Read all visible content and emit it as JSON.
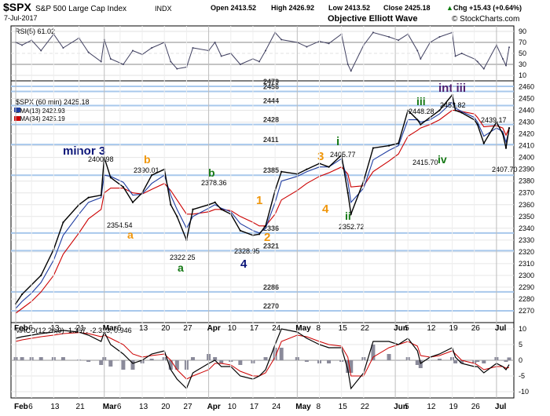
{
  "header": {
    "symbol": "$SPX",
    "name": "S&P 500 Large Cap Index",
    "exchange": "INDX",
    "date": "7-Jul-2017",
    "open": "Open 2413.52",
    "high": "High 2426.92",
    "low": "Low 2413.52",
    "close": "Close 2425.18",
    "chg": "Chg +15.43 (+0.64%)",
    "chg_arrow": "▲",
    "source": "Objective Elliott Wave",
    "copyright": "© StockCharts.com"
  },
  "colors": {
    "price": "#000000",
    "ema13": "#1e3ca0",
    "ema34": "#cc0000",
    "level_line": "#a8c8ec",
    "orange": "#f0960a",
    "green": "#147814",
    "navy": "#0a1478",
    "purple": "#502070",
    "rsi_area": "#404060"
  },
  "rsi_panel": {
    "label": "RSI(5) 61.02",
    "ticks": [
      "90",
      "70",
      "50",
      "30",
      "10"
    ]
  },
  "price_panel": {
    "series_label": "$SPX (60 min) 2425.18",
    "ema13_label": "EMA(13) 2422.93",
    "ema34_label": "EMA(34) 2425.19",
    "ticks": [
      "2460",
      "2450",
      "2440",
      "2430",
      "2420",
      "2410",
      "2400",
      "2390",
      "2380",
      "2370",
      "2360",
      "2350",
      "2340",
      "2330",
      "2320",
      "2310",
      "2300",
      "2290",
      "2280",
      "2270"
    ],
    "levels": [
      "2479",
      "2456",
      "2444",
      "2428",
      "2411",
      "2385",
      "2336",
      "2321",
      "2286",
      "2270"
    ],
    "price_labels": [
      "2400.98",
      "2390.01",
      "2378.36",
      "2354.54",
      "2322.25",
      "2328.95",
      "2405.77",
      "2352.72",
      "2448.28",
      "2453.82",
      "2439.17",
      "2415.70",
      "2407.70"
    ],
    "waves": {
      "minor3": "minor 3",
      "b_orange": "b",
      "a_orange": "a",
      "a_green": "a",
      "b_green": "b",
      "w4_navy": "4",
      "w1_orange": "1",
      "w2_orange": "2",
      "w3_orange": "3",
      "w4_orange": "4",
      "i_green": "i",
      "ii_green": "ii",
      "iii_green": "iii",
      "iv_green": "iv",
      "int_iii": "int iii"
    }
  },
  "macd_panel": {
    "label": "MACD(12,26,9) -1.367, -2.313, 0.946",
    "ticks": [
      "10",
      "5",
      "0",
      "-5",
      "-10"
    ]
  },
  "x_axis": {
    "labels": [
      "Feb",
      "6",
      "13",
      "21",
      "Mar",
      "6",
      "13",
      "20",
      "27",
      "Apr",
      "10",
      "17",
      "24",
      "May",
      "8",
      "15",
      "22",
      "Jun",
      "5",
      "12",
      "19",
      "26",
      "Jul"
    ]
  },
  "chart_data": {
    "type": "line",
    "title": "$SPX S&P 500 Large Cap Index INDX",
    "price_range": [
      2260,
      2465
    ],
    "rsi_range": [
      0,
      100
    ],
    "macd_range": [
      -12,
      12
    ],
    "x": [
      "Feb 1",
      "Feb 3",
      "Feb 6",
      "Feb 9",
      "Feb 13",
      "Feb 16",
      "Feb 21",
      "Feb 24",
      "Feb 28",
      "Mar 1",
      "Mar 3",
      "Mar 7",
      "Mar 10",
      "Mar 13",
      "Mar 16",
      "Mar 20",
      "Mar 22",
      "Mar 24",
      "Mar 27",
      "Mar 29",
      "Apr 3",
      "Apr 5",
      "Apr 7",
      "Apr 10",
      "Apr 13",
      "Apr 17",
      "Apr 19",
      "Apr 21",
      "Apr 24",
      "Apr 26",
      "May 1",
      "May 4",
      "May 8",
      "May 11",
      "May 15",
      "May 17",
      "May 18",
      "May 22",
      "May 25",
      "May 30",
      "Jun 2",
      "Jun 5",
      "Jun 8",
      "Jun 9",
      "Jun 12",
      "Jun 15",
      "Jun 19",
      "Jun 20",
      "Jun 22",
      "Jun 26",
      "Jun 27",
      "Jun 29",
      "Jul 3",
      "Jul 5",
      "Jul 6",
      "Jul 7"
    ],
    "series": [
      {
        "name": "$SPX (60 min)",
        "values": [
          2276,
          2284,
          2292,
          2300,
          2322,
          2345,
          2360,
          2366,
          2368,
          2400,
          2383,
          2375,
          2362,
          2370,
          2385,
          2390,
          2360,
          2350,
          2330,
          2356,
          2360,
          2362,
          2356,
          2352,
          2338,
          2334,
          2335,
          2342,
          2372,
          2388,
          2386,
          2390,
          2395,
          2392,
          2402,
          2370,
          2352,
          2380,
          2408,
          2410,
          2412,
          2440,
          2432,
          2428,
          2434,
          2440,
          2453,
          2440,
          2438,
          2432,
          2428,
          2412,
          2430,
          2420,
          2408,
          2425
        ]
      },
      {
        "name": "EMA(13)",
        "values": [
          2272,
          2278,
          2285,
          2294,
          2313,
          2334,
          2352,
          2362,
          2366,
          2385,
          2384,
          2379,
          2368,
          2369,
          2378,
          2385,
          2368,
          2356,
          2340,
          2350,
          2357,
          2360,
          2357,
          2354,
          2344,
          2338,
          2336,
          2340,
          2362,
          2380,
          2384,
          2388,
          2392,
          2392,
          2399,
          2380,
          2362,
          2374,
          2398,
          2406,
          2410,
          2432,
          2432,
          2430,
          2432,
          2437,
          2447,
          2442,
          2439,
          2434,
          2430,
          2418,
          2425,
          2422,
          2413,
          2423
        ]
      },
      {
        "name": "EMA(34)",
        "values": [
          2268,
          2272,
          2278,
          2286,
          2300,
          2318,
          2336,
          2348,
          2356,
          2370,
          2374,
          2374,
          2370,
          2369,
          2373,
          2378,
          2372,
          2364,
          2352,
          2352,
          2354,
          2356,
          2356,
          2355,
          2350,
          2345,
          2342,
          2342,
          2352,
          2364,
          2372,
          2378,
          2384,
          2387,
          2392,
          2386,
          2375,
          2376,
          2388,
          2397,
          2403,
          2418,
          2423,
          2425,
          2428,
          2432,
          2440,
          2440,
          2439,
          2437,
          2434,
          2426,
          2427,
          2425,
          2419,
          2425
        ]
      }
    ],
    "rsi": [
      70,
      65,
      74,
      55,
      85,
      60,
      78,
      52,
      35,
      75,
      40,
      30,
      55,
      48,
      60,
      70,
      35,
      22,
      25,
      60,
      55,
      70,
      45,
      50,
      30,
      40,
      35,
      55,
      88,
      75,
      70,
      62,
      72,
      68,
      85,
      30,
      18,
      65,
      88,
      80,
      74,
      85,
      55,
      40,
      70,
      80,
      88,
      45,
      50,
      40,
      35,
      22,
      65,
      40,
      28,
      61
    ],
    "macd": [
      7,
      7.5,
      8,
      8.5,
      9,
      9.5,
      9,
      8,
      6,
      9,
      5,
      2,
      -1,
      0,
      2,
      3,
      -3,
      -6,
      -9,
      -4,
      -1,
      0,
      -2,
      -2,
      -5,
      -6,
      -5,
      -3,
      5,
      10,
      9,
      7,
      5,
      4,
      4,
      -3,
      -9,
      -4,
      6,
      6,
      5,
      7,
      3,
      -1,
      1,
      2,
      4,
      1,
      -1,
      -2,
      -2,
      -4,
      -1,
      -2,
      -3,
      -1.4
    ],
    "macd_signal": [
      6,
      6.5,
      7,
      7.5,
      8,
      8.5,
      8.8,
      8.5,
      7.5,
      8,
      7,
      5,
      2,
      1,
      1.5,
      2,
      0,
      -3,
      -6,
      -5,
      -3,
      -1,
      -1,
      -1.5,
      -3.5,
      -5,
      -5,
      -4,
      1,
      6,
      8,
      7.5,
      6,
      5,
      4.5,
      1,
      -5,
      -5,
      1,
      4,
      5,
      6,
      4.5,
      1.5,
      1,
      1.5,
      3,
      2,
      0,
      -1,
      -1.5,
      -3,
      -2,
      -2,
      -2.5,
      -2.3
    ]
  }
}
